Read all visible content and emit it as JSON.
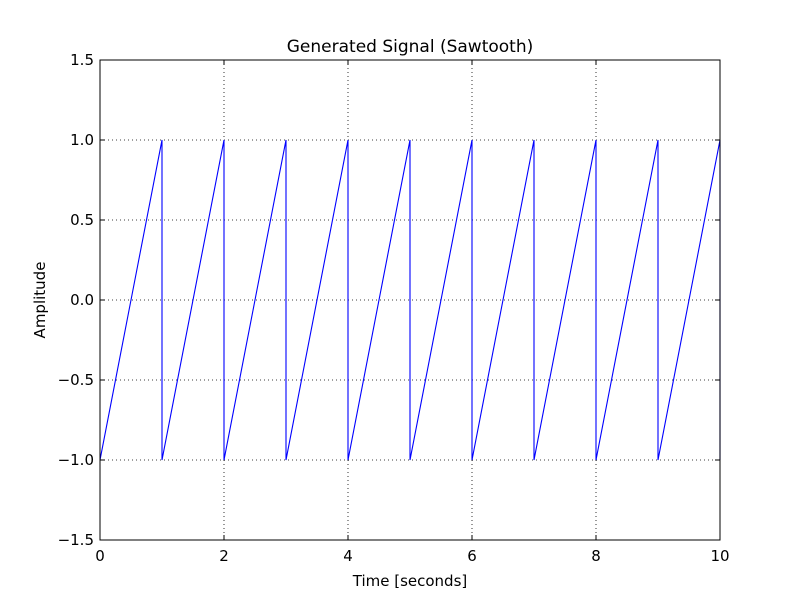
{
  "chart_data": {
    "type": "line",
    "title": "Generated Signal (Sawtooth)",
    "xlabel": "Time [seconds]",
    "ylabel": "Amplitude",
    "xlim": [
      0,
      10
    ],
    "ylim": [
      -1.5,
      1.5
    ],
    "xticks": [
      0,
      2,
      4,
      6,
      8,
      10
    ],
    "yticks": [
      -1.5,
      -1.0,
      -0.5,
      0.0,
      0.5,
      1.0,
      1.5
    ],
    "xtick_labels": [
      "0",
      "2",
      "4",
      "6",
      "8",
      "10"
    ],
    "ytick_labels": [
      "−1.5",
      "−1.0",
      "−0.5",
      "0.0",
      "0.5",
      "1.0",
      "1.5"
    ],
    "grid": true,
    "series": [
      {
        "color": "#0000ff",
        "x": [
          0,
          1,
          1,
          2,
          2,
          3,
          3,
          4,
          4,
          5,
          5,
          6,
          6,
          7,
          7,
          8,
          8,
          9,
          9,
          10,
          10
        ],
        "y": [
          -1,
          1,
          -1,
          1,
          -1,
          1,
          -1,
          1,
          -1,
          1,
          -1,
          1,
          -1,
          1,
          -1,
          1,
          -1,
          1,
          -1,
          1,
          -1
        ]
      }
    ]
  }
}
